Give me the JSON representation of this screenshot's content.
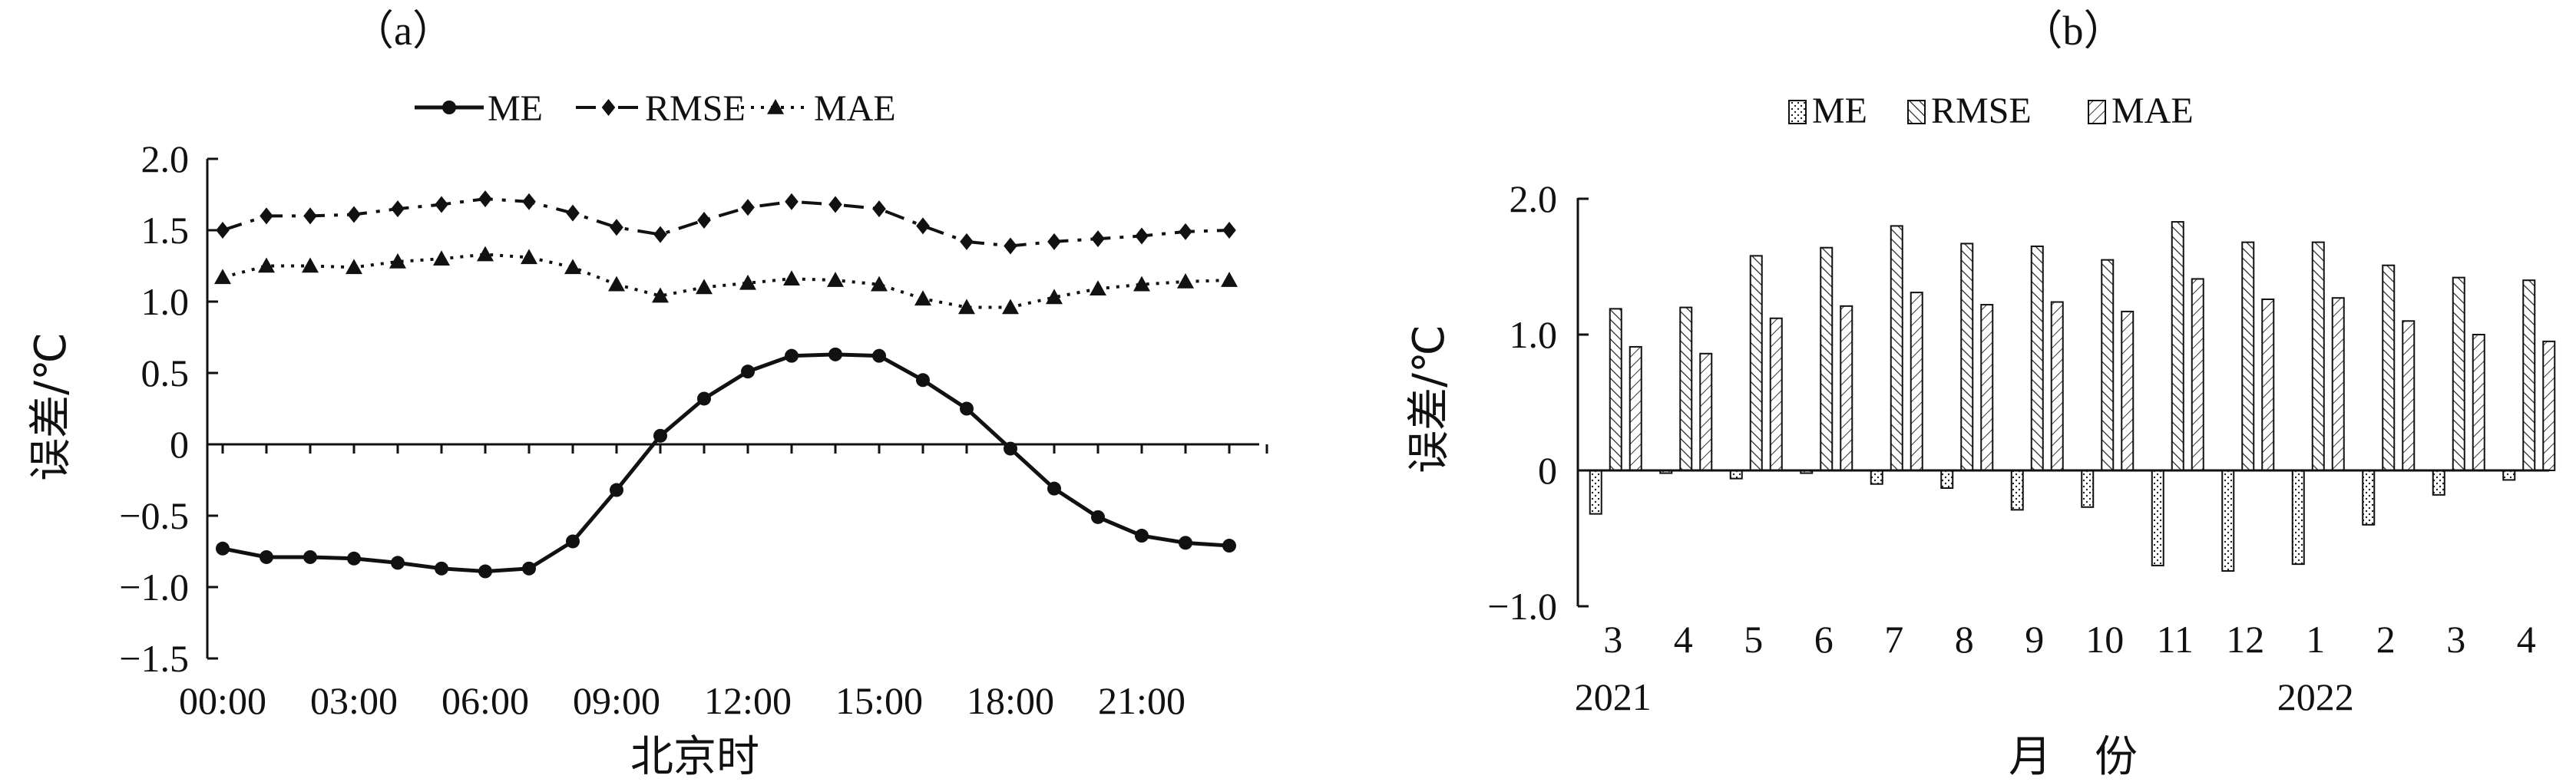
{
  "chart_data": [
    {
      "type": "line",
      "panel_label": "（a）",
      "xlabel": "北京时",
      "ylabel": "误差/℃",
      "ylim": [
        -1.5,
        2.0
      ],
      "yticks": [
        "2.0",
        "1.5",
        "1.0",
        "0.5",
        "0",
        "−0.5",
        "−1.0",
        "−1.5"
      ],
      "ytick_values": [
        2.0,
        1.5,
        1.0,
        0.5,
        0,
        -0.5,
        -1.0,
        -1.5
      ],
      "xtick_labels": [
        "00:00",
        "03:00",
        "06:00",
        "09:00",
        "12:00",
        "15:00",
        "18:00",
        "21:00"
      ],
      "x": [
        0,
        1,
        2,
        3,
        4,
        5,
        6,
        7,
        8,
        9,
        10,
        11,
        12,
        13,
        14,
        15,
        16,
        17,
        18,
        19,
        20,
        21,
        22,
        23
      ],
      "legend_position": "top-center",
      "grid": false,
      "series": [
        {
          "name": "ME",
          "marker": "circle",
          "dash": "solid",
          "values": [
            -0.73,
            -0.79,
            -0.79,
            -0.8,
            -0.83,
            -0.87,
            -0.89,
            -0.87,
            -0.68,
            -0.32,
            0.06,
            0.32,
            0.51,
            0.62,
            0.63,
            0.62,
            0.45,
            0.25,
            -0.03,
            -0.31,
            -0.51,
            -0.64,
            -0.69,
            -0.71
          ]
        },
        {
          "name": "RMSE",
          "marker": "diamond",
          "dash": "dashdot",
          "values": [
            1.5,
            1.6,
            1.6,
            1.61,
            1.65,
            1.68,
            1.72,
            1.7,
            1.62,
            1.52,
            1.47,
            1.57,
            1.66,
            1.7,
            1.68,
            1.65,
            1.53,
            1.42,
            1.39,
            1.42,
            1.44,
            1.46,
            1.49,
            1.5
          ]
        },
        {
          "name": "MAE",
          "marker": "triangle",
          "dash": "dotted",
          "values": [
            1.17,
            1.25,
            1.25,
            1.24,
            1.28,
            1.3,
            1.33,
            1.31,
            1.24,
            1.12,
            1.04,
            1.1,
            1.13,
            1.16,
            1.15,
            1.12,
            1.02,
            0.96,
            0.96,
            1.03,
            1.09,
            1.12,
            1.14,
            1.15
          ]
        }
      ]
    },
    {
      "type": "bar",
      "panel_label": "（b）",
      "xlabel": "月　份",
      "ylabel": "误差/℃",
      "ylim": [
        -1.0,
        2.0
      ],
      "yticks": [
        "2.0",
        "1.0",
        "0",
        "−1.0"
      ],
      "ytick_values": [
        2.0,
        1.0,
        0,
        -1.0
      ],
      "categories": [
        "3",
        "4",
        "5",
        "6",
        "7",
        "8",
        "9",
        "10",
        "11",
        "12",
        "1",
        "2",
        "3",
        "4"
      ],
      "year_labels": [
        {
          "text": "2021",
          "at_index": 0
        },
        {
          "text": "2022",
          "at_index": 10
        }
      ],
      "legend_position": "top-center",
      "grid": false,
      "series": [
        {
          "name": "ME",
          "pattern": "dots",
          "values": [
            -0.32,
            -0.02,
            -0.06,
            -0.02,
            -0.1,
            -0.13,
            -0.29,
            -0.27,
            -0.7,
            -0.74,
            -0.69,
            -0.4,
            -0.18,
            -0.07
          ]
        },
        {
          "name": "RMSE",
          "pattern": "forward-hatch",
          "values": [
            1.19,
            1.2,
            1.58,
            1.64,
            1.8,
            1.67,
            1.65,
            1.55,
            1.83,
            1.68,
            1.68,
            1.51,
            1.42,
            1.4
          ]
        },
        {
          "name": "MAE",
          "pattern": "backward-hatch",
          "values": [
            0.91,
            0.86,
            1.12,
            1.21,
            1.31,
            1.22,
            1.24,
            1.17,
            1.41,
            1.26,
            1.27,
            1.1,
            1.0,
            0.95
          ]
        }
      ]
    }
  ]
}
